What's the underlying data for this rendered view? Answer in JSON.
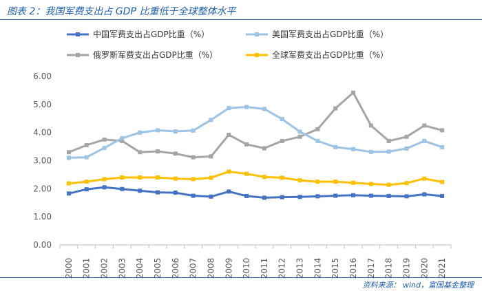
{
  "header": {
    "title": "图表 2：我国军费支出占 GDP 比重低于全球整体水平"
  },
  "footer": {
    "source": "资料来源： wind，富国基金整理"
  },
  "chart_data": {
    "type": "line",
    "title": "",
    "xlabel": "",
    "ylabel": "",
    "ylim": [
      0,
      6
    ],
    "yticks": [
      "0.00",
      "1.00",
      "2.00",
      "3.00",
      "4.00",
      "5.00",
      "6.00"
    ],
    "grid": false,
    "legend_position": "top",
    "x": [
      "2000",
      "2001",
      "2002",
      "2003",
      "2004",
      "2005",
      "2006",
      "2007",
      "2008",
      "2009",
      "2010",
      "2011",
      "2012",
      "2013",
      "2014",
      "2015",
      "2016",
      "2017",
      "2018",
      "2019",
      "2020",
      "2021"
    ],
    "series": [
      {
        "name": "中国军费支出占GDP比重（%）",
        "color": "#4472c4",
        "values": [
          1.83,
          1.98,
          2.05,
          1.99,
          1.93,
          1.87,
          1.86,
          1.75,
          1.72,
          1.9,
          1.74,
          1.68,
          1.7,
          1.71,
          1.73,
          1.75,
          1.77,
          1.75,
          1.74,
          1.73,
          1.8,
          1.74
        ]
      },
      {
        "name": "美国军费支出占GDP比重（%）",
        "color": "#9dc3e6",
        "values": [
          3.1,
          3.12,
          3.45,
          3.8,
          4.0,
          4.08,
          4.04,
          4.07,
          4.45,
          4.87,
          4.91,
          4.84,
          4.48,
          4.03,
          3.7,
          3.48,
          3.41,
          3.31,
          3.32,
          3.43,
          3.7,
          3.48
        ]
      },
      {
        "name": "俄罗斯军费支出占GDP比重（%）",
        "color": "#a5a5a5",
        "values": [
          3.3,
          3.55,
          3.75,
          3.7,
          3.3,
          3.33,
          3.25,
          3.12,
          3.15,
          3.92,
          3.58,
          3.44,
          3.7,
          3.85,
          4.12,
          4.86,
          5.42,
          4.25,
          3.7,
          3.85,
          4.25,
          4.08
        ]
      },
      {
        "name": "全球军费支出占GDP比重（%）",
        "color": "#ffc000",
        "values": [
          2.19,
          2.25,
          2.34,
          2.4,
          2.4,
          2.4,
          2.36,
          2.34,
          2.39,
          2.61,
          2.53,
          2.42,
          2.39,
          2.3,
          2.25,
          2.25,
          2.21,
          2.17,
          2.14,
          2.2,
          2.36,
          2.24
        ]
      }
    ]
  }
}
